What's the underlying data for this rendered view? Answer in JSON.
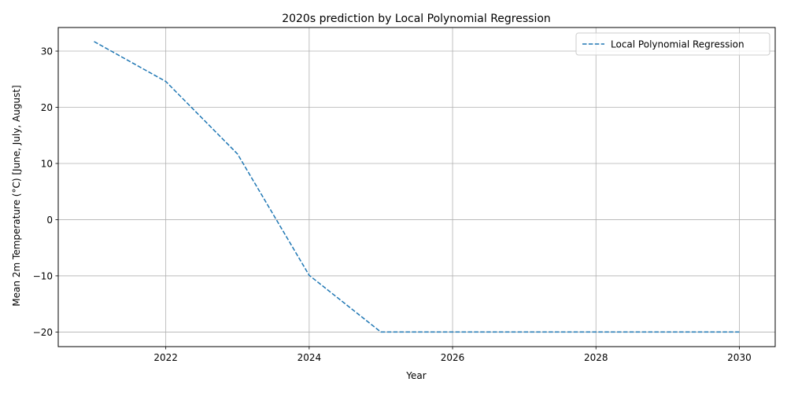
{
  "chart_data": {
    "type": "line",
    "title": "2020s prediction by Local Polynomial Regression",
    "xlabel": "Year",
    "ylabel": "Mean 2m Temperature (°C) [June, July, August]",
    "xlim": [
      2020.5,
      2030.5
    ],
    "ylim": [
      -22.6,
      34.2
    ],
    "xticks": [
      2022,
      2024,
      2026,
      2028,
      2030
    ],
    "yticks": [
      -20,
      -10,
      0,
      10,
      20,
      30
    ],
    "grid": true,
    "legend_position": "top-right",
    "series": [
      {
        "name": "Local Polynomial Regression",
        "color": "#1f77b4",
        "linestyle": "dashed",
        "x": [
          2021,
          2022,
          2023,
          2024,
          2025,
          2026,
          2027,
          2028,
          2029,
          2030
        ],
        "y": [
          31.7,
          24.6,
          11.7,
          -9.9,
          -20.0,
          -20.0,
          -20.0,
          -20.0,
          -20.0,
          -20.0
        ]
      }
    ]
  }
}
